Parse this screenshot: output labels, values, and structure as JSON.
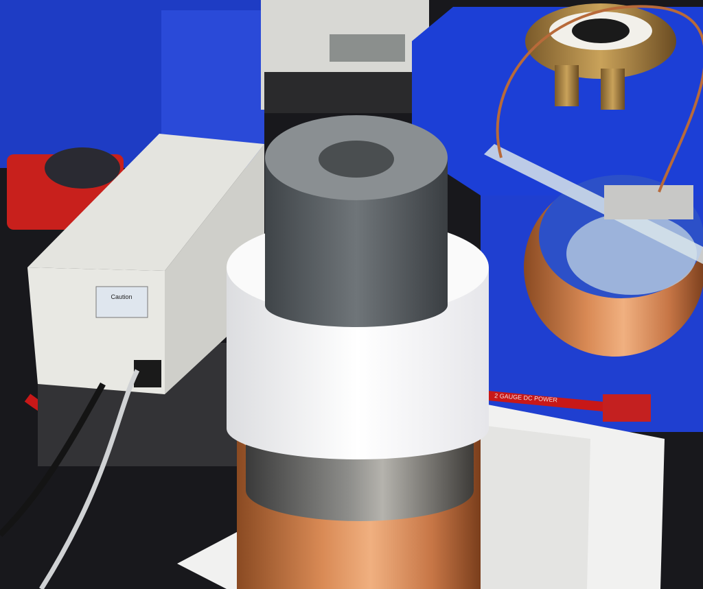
{
  "labels": {
    "caution": "Caution",
    "cable": "2 GAUGE DC POWER"
  }
}
